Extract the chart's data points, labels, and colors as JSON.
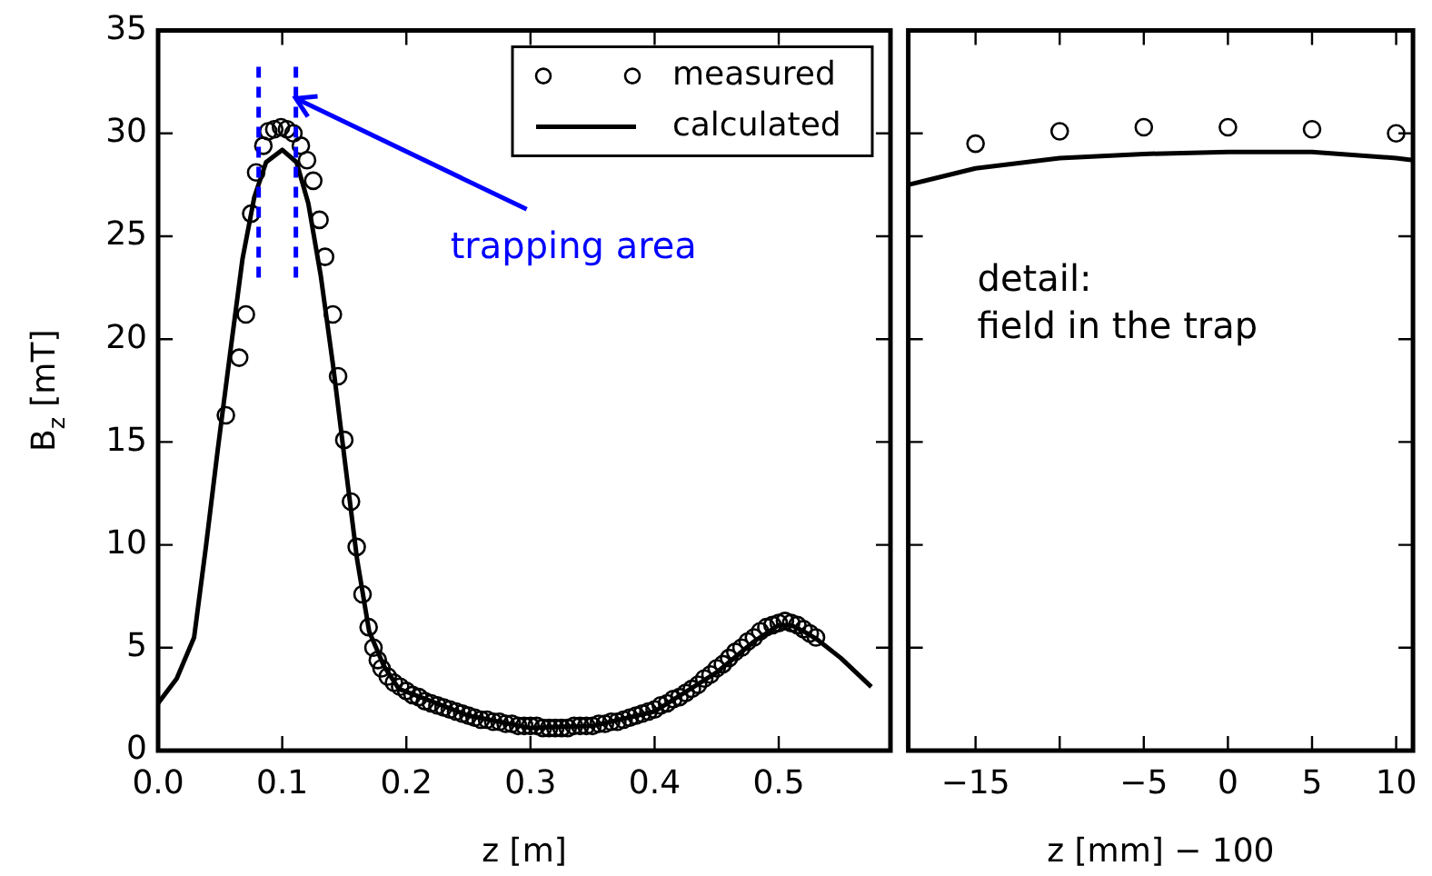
{
  "chart_data": [
    {
      "type": "scatter",
      "xlabel": "z [m]",
      "ylabel": "B$_{z}$ [mT]",
      "xlim": [
        0,
        0.59
      ],
      "ylim": [
        0,
        35
      ],
      "xticks": [
        {
          "value": 0,
          "label": "0.0"
        },
        0.1,
        0.2,
        0.3,
        0.4,
        0.5
      ],
      "yticks": [
        0,
        5,
        10,
        15,
        20,
        25,
        30,
        35
      ],
      "legend": "top right",
      "grid": false,
      "series": [
        {
          "name": "measured",
          "marker": "circle",
          "color": "#000000",
          "x": [
            0.0546,
            0.0653,
            0.0707,
            0.075,
            0.079,
            0.0848,
            0.0887,
            0.0936,
            0.099,
            0.1038,
            0.109,
            0.115,
            0.12,
            0.125,
            0.13,
            0.1345,
            0.1408,
            0.145,
            0.15,
            0.1554,
            0.16,
            0.1647,
            0.1696,
            0.1735,
            0.177,
            0.18,
            0.185,
            0.19,
            0.195,
            0.2,
            0.205,
            0.21,
            0.215,
            0.22,
            0.225,
            0.23,
            0.235,
            0.24,
            0.245,
            0.25,
            0.255,
            0.26,
            0.265,
            0.27,
            0.275,
            0.28,
            0.285,
            0.29,
            0.295,
            0.3,
            0.305,
            0.31,
            0.315,
            0.32,
            0.325,
            0.33,
            0.335,
            0.34,
            0.345,
            0.35,
            0.355,
            0.36,
            0.365,
            0.37,
            0.375,
            0.38,
            0.385,
            0.39,
            0.395,
            0.4,
            0.405,
            0.41,
            0.415,
            0.42,
            0.425,
            0.43,
            0.435,
            0.44,
            0.445,
            0.45,
            0.455,
            0.46,
            0.465,
            0.47,
            0.475,
            0.48,
            0.485,
            0.49,
            0.495,
            0.5,
            0.505,
            0.51,
            0.515,
            0.52,
            0.525,
            0.53
          ],
          "values": [
            16.3,
            19.1,
            21.2,
            26.1,
            28.1,
            29.4,
            30.1,
            30.2,
            30.3,
            30.2,
            30.0,
            29.4,
            28.7,
            27.7,
            25.8,
            24.0,
            21.2,
            18.2,
            15.1,
            12.1,
            9.9,
            7.6,
            6.0,
            5.0,
            4.4,
            4.0,
            3.6,
            3.3,
            3.1,
            2.9,
            2.7,
            2.6,
            2.4,
            2.3,
            2.2,
            2.1,
            2.0,
            1.9,
            1.8,
            1.7,
            1.6,
            1.5,
            1.5,
            1.4,
            1.4,
            1.3,
            1.3,
            1.2,
            1.2,
            1.2,
            1.2,
            1.1,
            1.1,
            1.1,
            1.1,
            1.1,
            1.2,
            1.2,
            1.2,
            1.2,
            1.3,
            1.3,
            1.4,
            1.4,
            1.5,
            1.6,
            1.7,
            1.8,
            1.9,
            2.0,
            2.2,
            2.3,
            2.5,
            2.6,
            2.8,
            3.0,
            3.2,
            3.5,
            3.7,
            4.0,
            4.2,
            4.5,
            4.8,
            5.0,
            5.3,
            5.5,
            5.8,
            6.0,
            6.1,
            6.2,
            6.3,
            6.2,
            6.1,
            5.9,
            5.7,
            5.5
          ]
        },
        {
          "name": "calculated",
          "type": "line",
          "marker": "none",
          "line_style": "solid",
          "color": "#000000",
          "x": [
            0,
            0.015,
            0.029,
            0.0385,
            0.048,
            0.058,
            0.068,
            0.0775,
            0.087,
            0.1,
            0.1115,
            0.121,
            0.131,
            0.141,
            0.1506,
            0.1603,
            0.17,
            0.182,
            0.194,
            0.22,
            0.25,
            0.3,
            0.35,
            0.4,
            0.45,
            0.48,
            0.5,
            0.51,
            0.52,
            0.531,
            0.55,
            0.5746
          ],
          "values": [
            2.3,
            3.5,
            5.5,
            9.9,
            14.6,
            19.3,
            23.9,
            26.9,
            28.6,
            29.2,
            28.6,
            26.6,
            23.1,
            18.7,
            14.0,
            9.3,
            5.8,
            4.1,
            3.0,
            2.4,
            1.7,
            1.1,
            1.2,
            1.9,
            3.8,
            5.3,
            6.1,
            6.1,
            5.8,
            5.4,
            4.5,
            3.1
          ]
        }
      ],
      "ref_lines": [
        {
          "axis": "x",
          "value": 0.081,
          "color": "#0000ff",
          "line_style": "dashed"
        },
        {
          "axis": "x",
          "value": 0.111,
          "color": "#0000ff",
          "line_style": "dashed"
        }
      ],
      "annotations": [
        {
          "text": "trapping area",
          "x": 0.111,
          "y": 31.7
        }
      ]
    },
    {
      "type": "scatter",
      "xlabel": "z [mm] − 100",
      "xlim": [
        -19,
        11
      ],
      "ylim": [
        0,
        35
      ],
      "xticks": [
        {
          "value": -15,
          "label": "−15"
        },
        {
          "value": -10,
          "label": null
        },
        {
          "value": -5,
          "label": "−5"
        },
        0,
        5,
        10
      ],
      "yticks": [
        0,
        5,
        10,
        15,
        20,
        25,
        30,
        35
      ],
      "tick_labels": "x",
      "grid": false,
      "series": [
        {
          "marker": "circle",
          "color": "#000000",
          "x": [
            -15,
            -10,
            -5,
            0,
            5,
            10
          ],
          "values": [
            29.5,
            30.1,
            30.3,
            30.3,
            30.2,
            30.0
          ]
        },
        {
          "type": "line",
          "marker": "none",
          "line_style": "solid",
          "color": "#000000",
          "x": [
            -19,
            -15,
            -10,
            -5,
            0,
            5,
            10,
            11
          ],
          "values": [
            27.5,
            28.3,
            28.8,
            29.0,
            29.1,
            29.1,
            28.8,
            28.7
          ]
        }
      ],
      "annotations": [
        "detail:\nfield in the trap"
      ]
    }
  ]
}
